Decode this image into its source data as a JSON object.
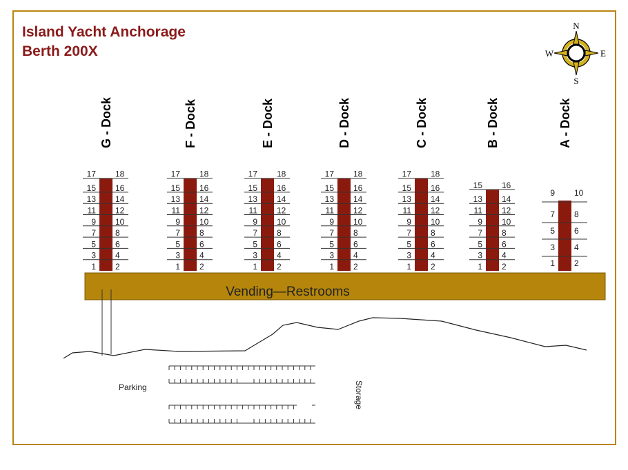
{
  "title": {
    "line1": "Island Yacht Anchorage",
    "line2": "Berth 200X"
  },
  "compass": {
    "n": "N",
    "s": "S",
    "e": "E",
    "w": "W",
    "ring_color": "#d4b21c"
  },
  "docks": [
    {
      "name": "G - Dock",
      "slips": 18
    },
    {
      "name": "F - Dock",
      "slips": 18
    },
    {
      "name": "E - Dock",
      "slips": 18
    },
    {
      "name": "D - Dock",
      "slips": 18
    },
    {
      "name": "C - Dock",
      "slips": 18
    },
    {
      "name": "B - Dock",
      "slips": 16
    },
    {
      "name": "A - Dock",
      "slips": 10
    }
  ],
  "boardwalk": {
    "label": "Vending—Restrooms",
    "color": "#b5860b"
  },
  "dock_color": "#8b1a0e",
  "frame_color": "#b8860b",
  "parking_label": "Parking",
  "storage_label": "Storage"
}
